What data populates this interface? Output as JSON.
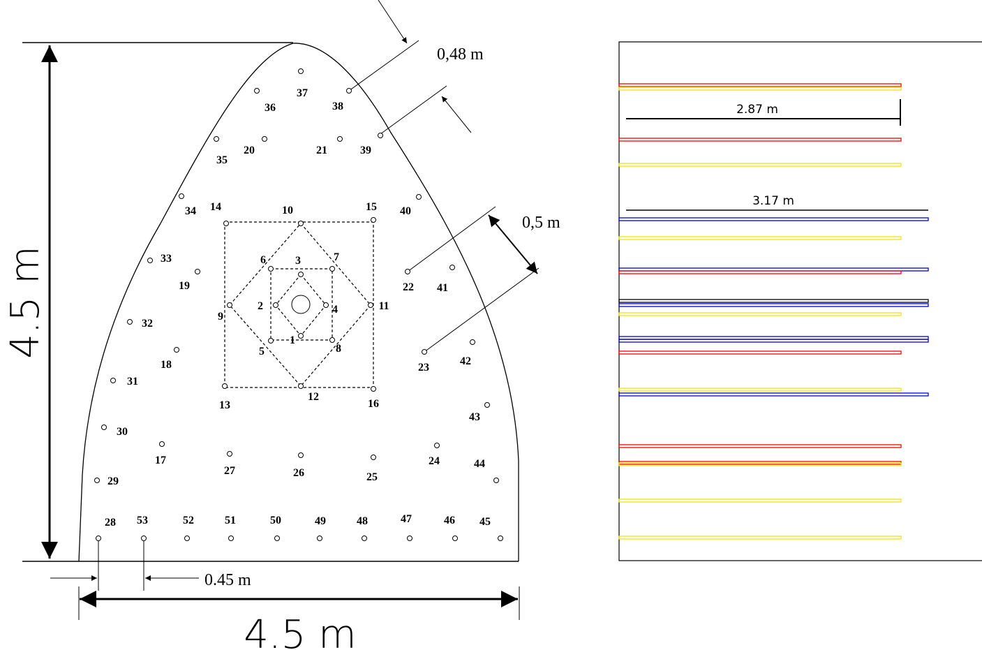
{
  "holes": [
    "1",
    "2",
    "3",
    "4",
    "5",
    "6",
    "7",
    "8",
    "9",
    "10",
    "11",
    "12",
    "13",
    "14",
    "15",
    "16",
    "17",
    "18",
    "19",
    "20",
    "21",
    "22",
    "23",
    "24",
    "25",
    "26",
    "27",
    "28",
    "29",
    "30",
    "31",
    "32",
    "33",
    "34",
    "35",
    "36",
    "37",
    "38",
    "39",
    "40",
    "41",
    "42",
    "43",
    "44",
    "45",
    "46",
    "47",
    "48",
    "49",
    "50",
    "51",
    "52",
    "53"
  ],
  "dimensions": {
    "top_offset": "0,48 m",
    "spacing": "0,5 m",
    "bottom_offset": "0.45 m",
    "height": "4.5 m",
    "width": "4.5 m",
    "length_short": "2.87 m",
    "length_long": "3.17 m"
  }
}
